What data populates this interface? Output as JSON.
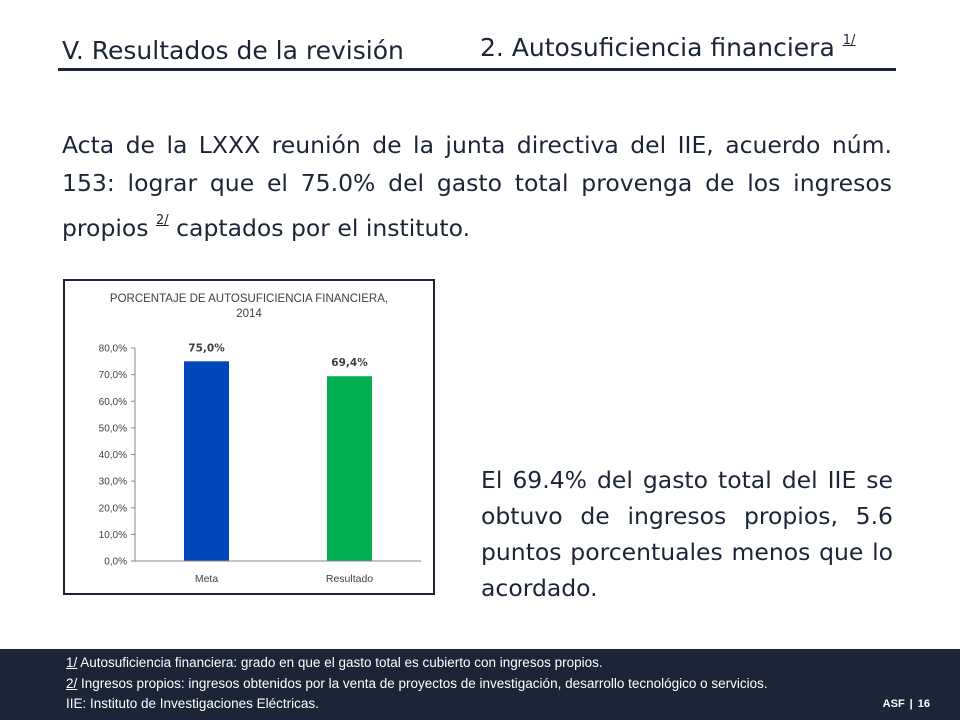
{
  "header": {
    "section_title": "V. Resultados de la revisión",
    "subsection_title": "2. Autosuficiencia financiera",
    "subsection_note": "1/"
  },
  "intro": {
    "text_before_note": "Acta de la LXXX reunión de la junta directiva del IIE, acuerdo núm. 153: lograr que el 75.0% del gasto total provenga de los ingresos propios",
    "note_mark": "2/",
    "text_after_note": "captados por el instituto."
  },
  "chart_data": {
    "type": "bar",
    "title": "PORCENTAJE DE AUTOSUFICIENCIA FINANCIERA, 2014",
    "title_lines": [
      "PORCENTAJE DE AUTOSUFICIENCIA FINANCIERA,",
      "2014"
    ],
    "categories": [
      "Meta",
      "Resultado"
    ],
    "values": [
      75.0,
      69.4
    ],
    "data_labels": [
      "75,0%",
      "69,4%"
    ],
    "bar_colors": [
      "#0047bb",
      "#00b050"
    ],
    "ylim": [
      0,
      80
    ],
    "yticks": [
      0,
      10,
      20,
      30,
      40,
      50,
      60,
      70,
      80
    ],
    "ytick_labels": [
      "0,0%",
      "10,0%",
      "20,0%",
      "30,0%",
      "40,0%",
      "50,0%",
      "60,0%",
      "70,0%",
      "80,0%"
    ],
    "grid": false,
    "legend": "none"
  },
  "side_note": {
    "text": "El 69.4% del gasto total del IIE se obtuvo de ingresos propios, 5.6 puntos porcentuales menos que lo acordado."
  },
  "footnotes": [
    {
      "mark": "1/",
      "text": "Autosuficiencia financiera: grado en que el gasto total es cubierto con ingresos propios."
    },
    {
      "mark": "2/",
      "text": "Ingresos propios: ingresos obtenidos por la venta de proyectos de investigación, desarrollo tecnológico o servicios."
    },
    {
      "mark": "",
      "text": "IIE: Instituto de Investigaciones Eléctricas."
    }
  ],
  "footer_tag": {
    "org": "ASF",
    "separator": "|",
    "page": "16"
  },
  "colors": {
    "text": "#1b2537",
    "footer_bg": "#1b2537",
    "bar_meta": "#0047bb",
    "bar_resultado": "#00b050"
  }
}
